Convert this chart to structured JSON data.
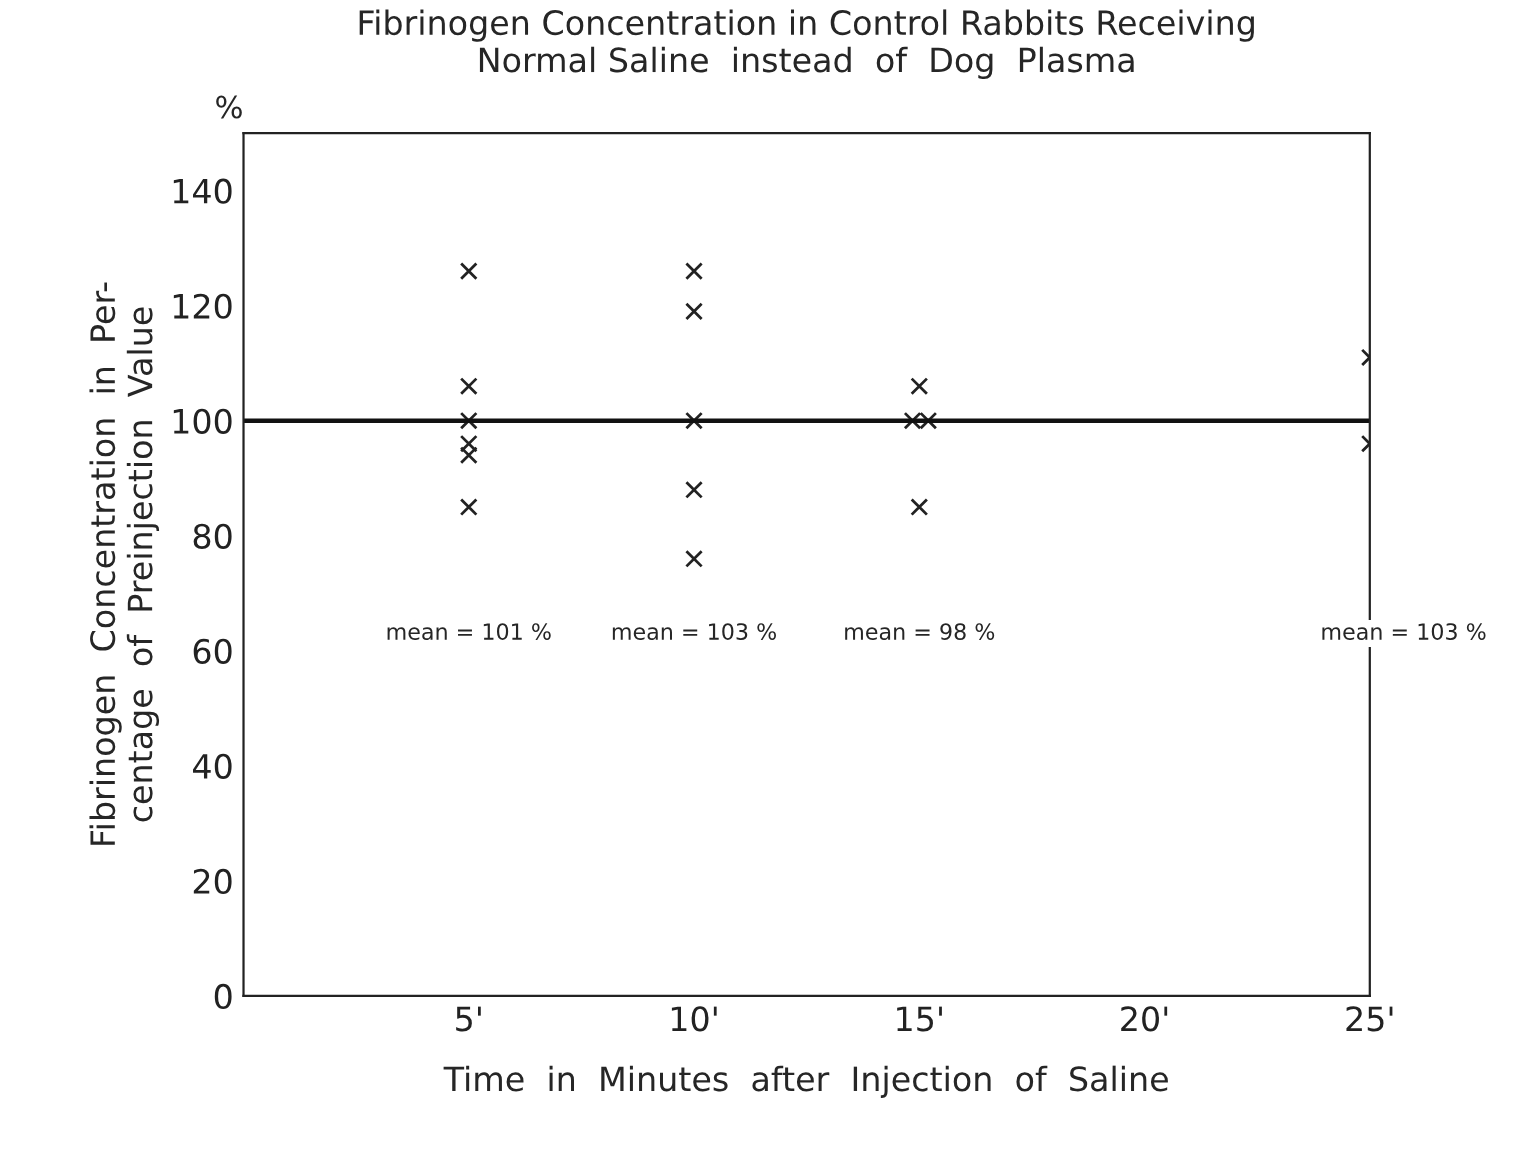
{
  "chart_data": {
    "type": "scatter",
    "title": "Fibrinogen Concentration in Control Rabbits Receiving\nNormal Saline  instead  of  Dog  Plasma",
    "xlabel": "Time  in  Minutes  after  Injection  of  Saline",
    "ylabel": "Fibrinogen  Concentration  in  Per-\ncentage  of  Preinjection  Value",
    "x": [
      5,
      5,
      5,
      5,
      5,
      5,
      10,
      10,
      10,
      10,
      10,
      15,
      14.85,
      15.2,
      15,
      25,
      25
    ],
    "series": [
      {
        "color": "#222222",
        "values": [
          126,
          106,
          100,
          96,
          94,
          85,
          126,
          119,
          100,
          88,
          76,
          106,
          100,
          100,
          85,
          111,
          96
        ]
      }
    ],
    "marker": "cross",
    "xlim": [
      0,
      25
    ],
    "ylim": [
      0,
      150
    ],
    "xticks": [
      {
        "value": 5,
        "label": "5'"
      },
      {
        "value": 10,
        "label": "10'"
      },
      {
        "value": 15,
        "label": "15'"
      },
      {
        "value": 20,
        "label": "20'"
      },
      {
        "value": 25,
        "label": "25'"
      }
    ],
    "yticks": [
      0,
      20,
      40,
      60,
      80,
      100,
      120,
      140
    ],
    "ref_lines": [
      {
        "axis": "y",
        "value": 100,
        "color": "#111111"
      }
    ],
    "annotations": [
      "%",
      "mean = 101 %",
      "mean = 103 %",
      "mean = 98 %",
      "mean = 103 %"
    ],
    "grid": false,
    "legend": false
  }
}
